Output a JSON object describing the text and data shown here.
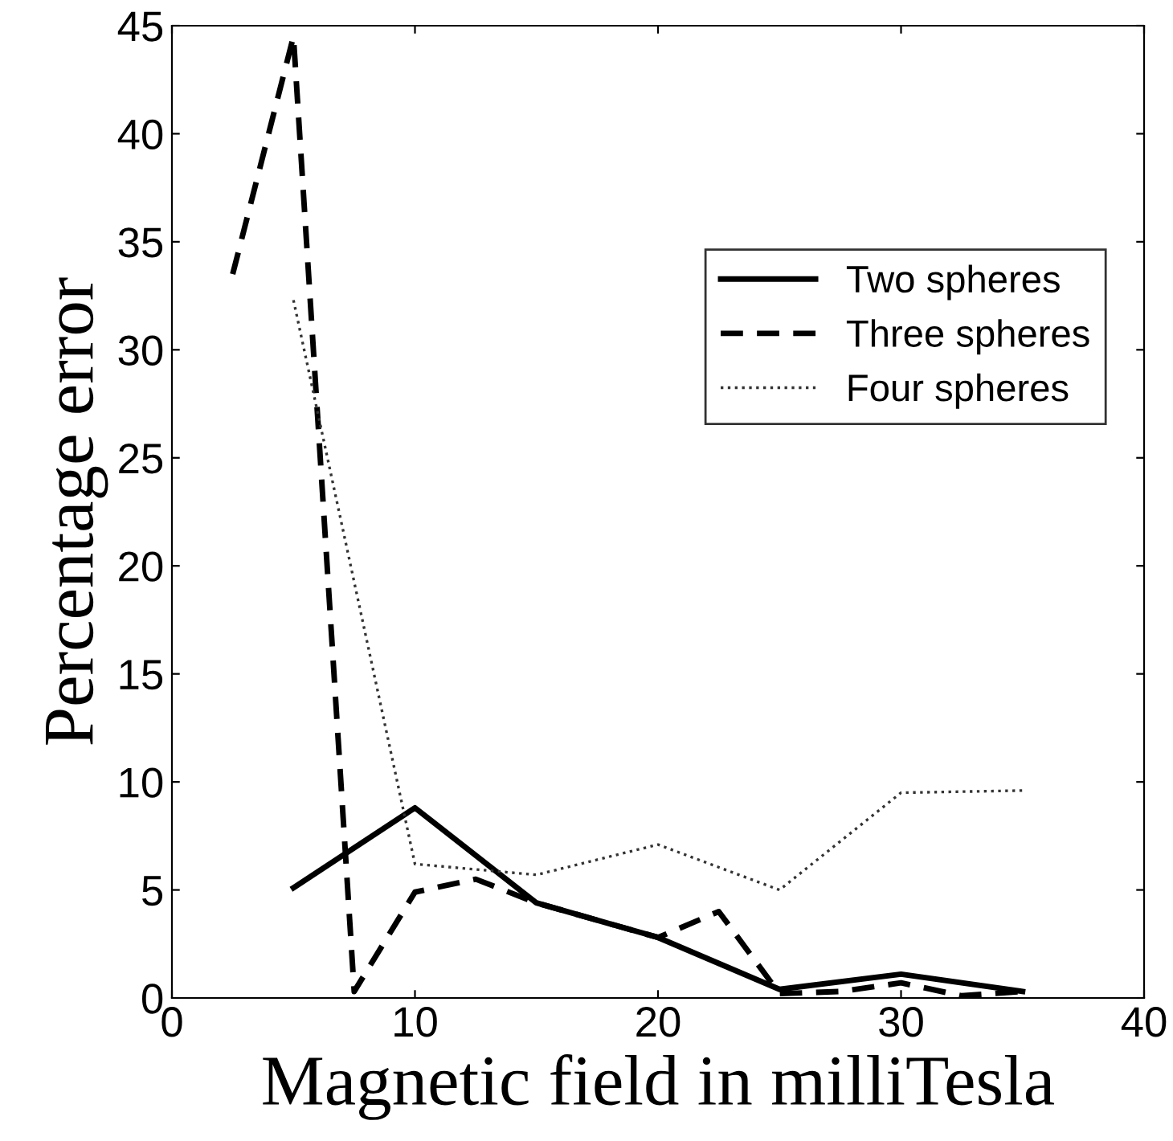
{
  "chart_data": {
    "type": "line",
    "xlabel": "Magnetic field in milliTesla",
    "ylabel": "Percentage error",
    "xlim": [
      0,
      40
    ],
    "xticks": [
      0,
      10,
      20,
      30,
      40
    ],
    "ylim": [
      0,
      45
    ],
    "yticks": [
      0,
      5,
      10,
      15,
      20,
      25,
      30,
      35,
      40,
      45
    ],
    "legend": "right",
    "grid": false,
    "series": [
      {
        "name": "Two spheres",
        "color": "#000000",
        "line_style": "solid",
        "x": [
          5,
          10,
          15,
          20,
          25,
          30,
          35
        ],
        "values": [
          5.1,
          8.8,
          4.4,
          2.8,
          0.4,
          1.1,
          0.3
        ]
      },
      {
        "name": "Three spheres",
        "color": "#000000",
        "line_style": "dashed",
        "x": [
          2.5,
          5,
          7.5,
          10,
          12.5,
          15,
          20,
          22.5,
          25,
          27.5,
          30,
          32.5,
          35
        ],
        "values": [
          33.5,
          44.5,
          0.3,
          4.9,
          5.5,
          4.4,
          2.8,
          4.0,
          0.2,
          0.3,
          0.7,
          0.1,
          0.3
        ]
      },
      {
        "name": "Four spheres",
        "color": "#333333",
        "line_style": "dotted",
        "x": [
          5,
          10,
          15,
          20,
          25,
          30,
          35
        ],
        "values": [
          32.3,
          6.2,
          5.7,
          7.1,
          5.0,
          9.5,
          9.6
        ]
      }
    ]
  }
}
